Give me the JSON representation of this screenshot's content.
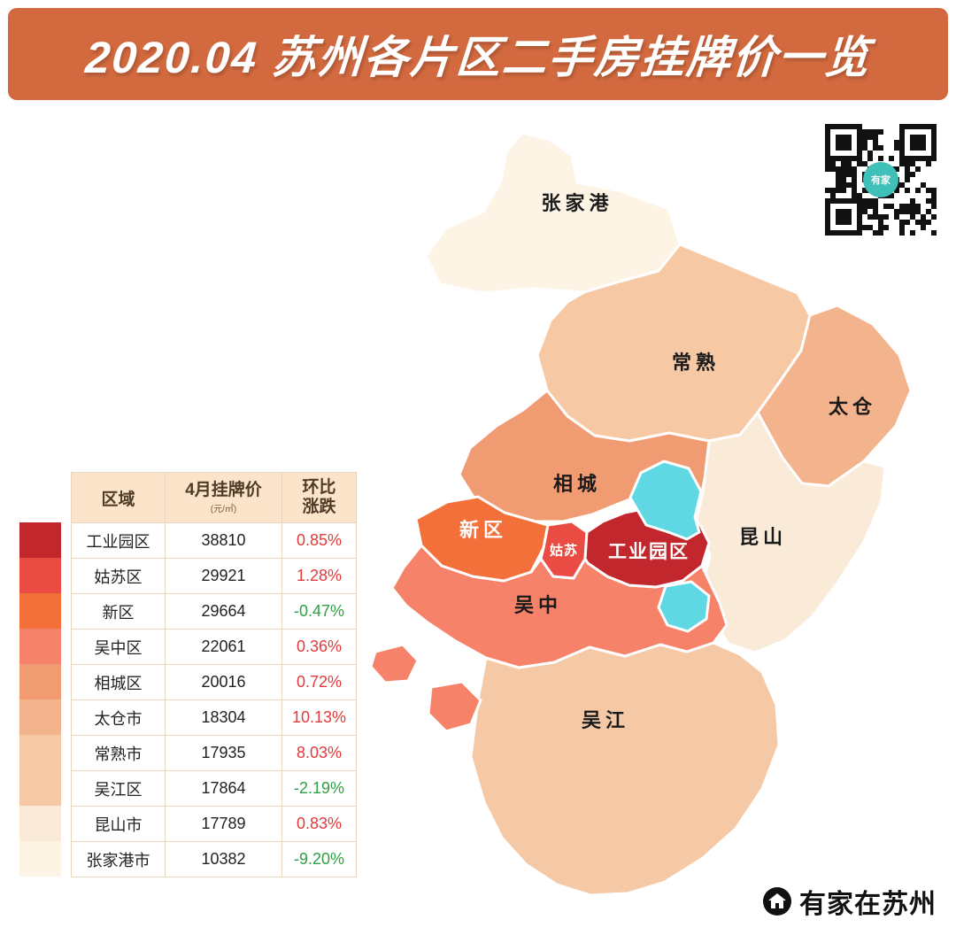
{
  "title": "2020.04 苏州各片区二手房挂牌价一览",
  "banner_color": "#d2693f",
  "table": {
    "headers": {
      "region": "区域",
      "price": "4月挂牌价",
      "price_unit": "(元/㎡)",
      "change_line1": "环比",
      "change_line2": "涨跌"
    },
    "rows": [
      {
        "region": "工业园区",
        "price": "38810",
        "change": "0.85%",
        "trend": "up",
        "color": "#c1272d"
      },
      {
        "region": "姑苏区",
        "price": "29921",
        "change": "1.28%",
        "trend": "up",
        "color": "#ea4b43"
      },
      {
        "region": "新区",
        "price": "29664",
        "change": "-0.47%",
        "trend": "down",
        "color": "#f4703a"
      },
      {
        "region": "吴中区",
        "price": "22061",
        "change": "0.36%",
        "trend": "up",
        "color": "#f6826a"
      },
      {
        "region": "相城区",
        "price": "20016",
        "change": "0.72%",
        "trend": "up",
        "color": "#f19b73"
      },
      {
        "region": "太仓市",
        "price": "18304",
        "change": "10.13%",
        "trend": "up",
        "color": "#f3b38c"
      },
      {
        "region": "常熟市",
        "price": "17935",
        "change": "8.03%",
        "trend": "up",
        "color": "#f7c8a4"
      },
      {
        "region": "吴江区",
        "price": "17864",
        "change": "-2.19%",
        "trend": "down",
        "color": "#f6c9a6"
      },
      {
        "region": "昆山市",
        "price": "17789",
        "change": "0.83%",
        "trend": "up",
        "color": "#faebd9"
      },
      {
        "region": "张家港市",
        "price": "10382",
        "change": "-9.20%",
        "trend": "down",
        "color": "#fdf4e5"
      }
    ]
  },
  "map": {
    "labels": [
      "张家港",
      "常熟",
      "太仓",
      "相城",
      "昆山",
      "新区",
      "姑苏",
      "工业园区",
      "吴中",
      "吴江"
    ],
    "lake_color": "#5fd8e4"
  },
  "qr": {
    "label": "有家"
  },
  "footer": {
    "brand": "有家在苏州"
  },
  "chart_data": {
    "type": "choropleth-map-with-table",
    "title": "2020.04 苏州各片区二手房挂牌价一览",
    "unit": "元/㎡",
    "price_column_label": "4月挂牌价",
    "change_column_label": "环比涨跌",
    "regions": [
      {
        "name": "工业园区",
        "price": 38810,
        "mom_change_pct": 0.85
      },
      {
        "name": "姑苏区",
        "price": 29921,
        "mom_change_pct": 1.28
      },
      {
        "name": "新区",
        "price": 29664,
        "mom_change_pct": -0.47
      },
      {
        "name": "吴中区",
        "price": 22061,
        "mom_change_pct": 0.36
      },
      {
        "name": "相城区",
        "price": 20016,
        "mom_change_pct": 0.72
      },
      {
        "name": "太仓市",
        "price": 18304,
        "mom_change_pct": 10.13
      },
      {
        "name": "常熟市",
        "price": 17935,
        "mom_change_pct": 8.03
      },
      {
        "name": "吴江区",
        "price": 17864,
        "mom_change_pct": -2.19
      },
      {
        "name": "昆山市",
        "price": 17789,
        "mom_change_pct": 0.83
      },
      {
        "name": "张家港市",
        "price": 10382,
        "mom_change_pct": -9.2
      }
    ],
    "color_scale": "dark red (highest price) to cream (lowest price)"
  }
}
